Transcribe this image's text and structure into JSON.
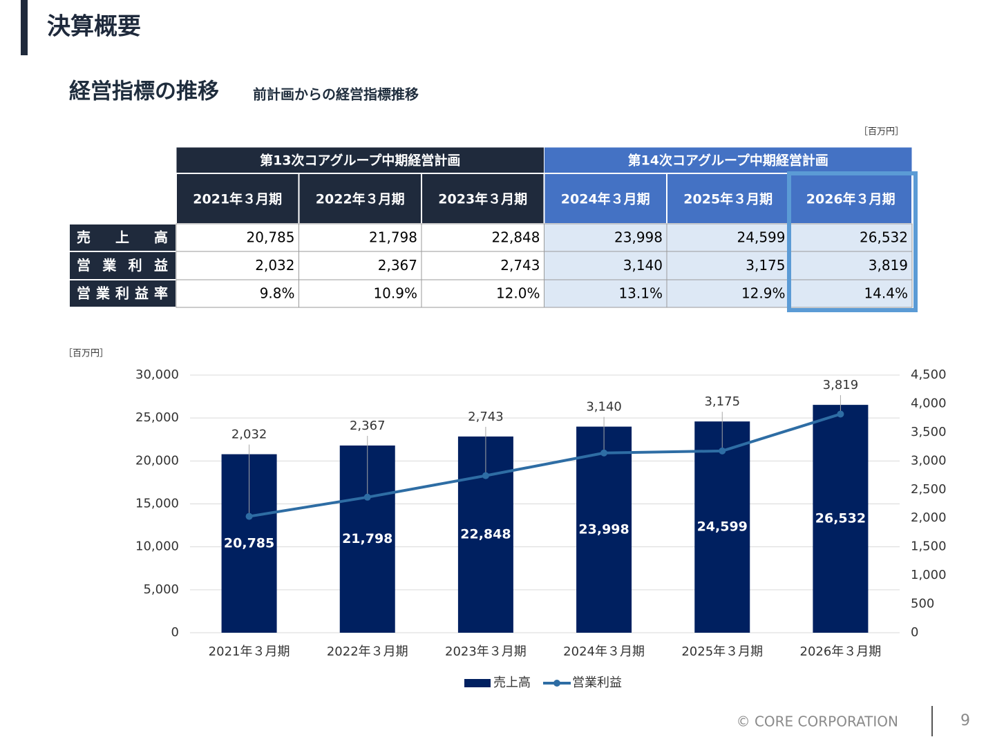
{
  "header": {
    "title": "決算概要"
  },
  "section": {
    "title": "経営指標の推移",
    "subtitle": "前計画からの経営指標推移"
  },
  "table": {
    "unit": "［百万円］",
    "groups": [
      "第13次コアグループ中期経営計画",
      "第14次コアグループ中期経営計画"
    ],
    "columns": [
      "2021年３月期",
      "2022年３月期",
      "2023年３月期",
      "2024年３月期",
      "2025年３月期",
      "2026年３月期"
    ],
    "rows": [
      {
        "label": "売上高",
        "cells": [
          "20,785",
          "21,798",
          "22,848",
          "23,998",
          "24,599",
          "26,532"
        ]
      },
      {
        "label": "営業利益",
        "cells": [
          "2,032",
          "2,367",
          "2,743",
          "3,140",
          "3,175",
          "3,819"
        ]
      },
      {
        "label": "営業利益率",
        "cells": [
          "9.8%",
          "10.9%",
          "12.0%",
          "13.1%",
          "12.9%",
          "14.4%"
        ]
      }
    ]
  },
  "chart_data": {
    "type": "bar",
    "unit": "［百万円］",
    "categories": [
      "2021年３月期",
      "2022年３月期",
      "2023年３月期",
      "2024年３月期",
      "2025年３月期",
      "2026年３月期"
    ],
    "series": [
      {
        "name": "売上高",
        "type": "bar",
        "color": "#002060",
        "values": [
          20785,
          21798,
          22848,
          23998,
          24599,
          26532
        ],
        "value_labels": [
          "20,785",
          "21,798",
          "22,848",
          "23,998",
          "24,599",
          "26,532"
        ]
      },
      {
        "name": "営業利益",
        "type": "line",
        "axis": "y2",
        "color": "#2e6da4",
        "values": [
          2032,
          2367,
          2743,
          3140,
          3175,
          3819
        ],
        "value_labels": [
          "2,032",
          "2,367",
          "2,743",
          "3,140",
          "3,175",
          "3,819"
        ]
      }
    ],
    "ylim": [
      0,
      30000
    ],
    "yticks": [
      0,
      {
        "value": 5000,
        "label": "5,000"
      },
      {
        "value": 10000,
        "label": "10,000"
      },
      {
        "value": 15000,
        "label": "15,000"
      },
      {
        "value": 20000,
        "label": "20,000"
      },
      {
        "value": 25000,
        "label": "25,000"
      },
      {
        "value": 30000,
        "label": "30,000"
      }
    ],
    "y2lim": [
      0,
      4500
    ],
    "y2ticks": [
      0,
      500,
      {
        "value": 1000,
        "label": "1,000"
      },
      {
        "value": 1500,
        "label": "1,500"
      },
      {
        "value": 2000,
        "label": "2,000"
      },
      {
        "value": 2500,
        "label": "2,500"
      },
      {
        "value": 3000,
        "label": "3,000"
      },
      {
        "value": 3500,
        "label": "3,500"
      },
      {
        "value": 4000,
        "label": "4,000"
      },
      {
        "value": 4500,
        "label": "4,500"
      }
    ],
    "grid": true,
    "legend": "bottom"
  },
  "footer": {
    "copyright": "© CORE CORPORATION",
    "page": "9"
  }
}
